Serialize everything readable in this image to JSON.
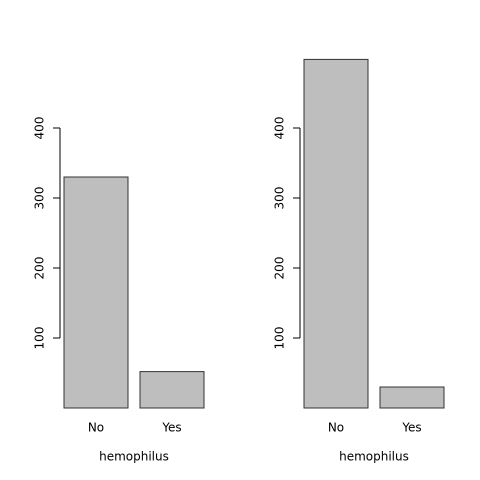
{
  "chart_data": [
    {
      "type": "bar",
      "categories": [
        "No",
        "Yes"
      ],
      "values": [
        330,
        52
      ],
      "xlabel": "hemophilus",
      "color": "#bebebe",
      "ylim": [
        0,
        500
      ],
      "yticks": [
        100,
        200,
        300,
        400
      ]
    },
    {
      "type": "bar",
      "categories": [
        "No",
        "Yes"
      ],
      "values": [
        498,
        30
      ],
      "xlabel": "hemophilus",
      "color": "#bebebe",
      "ylim": [
        0,
        500
      ],
      "yticks": [
        100,
        200,
        300,
        400
      ]
    }
  ]
}
